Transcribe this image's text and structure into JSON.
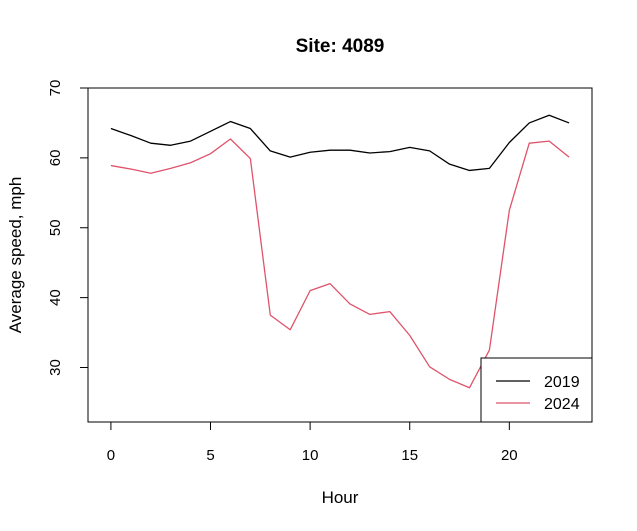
{
  "chart_data": {
    "type": "line",
    "title": "Site: 4089",
    "xlabel": "Hour",
    "ylabel": "Average speed, mph",
    "xlim": [
      -1.15,
      24.15
    ],
    "ylim": [
      22.2,
      70
    ],
    "x_ticks": [
      0,
      5,
      10,
      15,
      20
    ],
    "y_ticks": [
      30,
      40,
      50,
      60,
      70
    ],
    "grid": false,
    "legend_position": "bottom-right",
    "x": [
      0,
      1,
      2,
      3,
      4,
      5,
      6,
      7,
      8,
      9,
      10,
      11,
      12,
      13,
      14,
      15,
      16,
      17,
      18,
      19,
      20,
      21,
      22,
      23
    ],
    "series": [
      {
        "name": "2019",
        "color": "#000000",
        "values": [
          64.2,
          63.2,
          62.1,
          61.8,
          62.4,
          63.8,
          65.2,
          64.2,
          61.0,
          60.1,
          60.8,
          61.1,
          61.1,
          60.7,
          60.9,
          61.5,
          61.0,
          59.1,
          58.2,
          58.5,
          62.2,
          65.0,
          66.1,
          65.0
        ]
      },
      {
        "name": "2024",
        "color": "#DF536B",
        "values": [
          58.9,
          58.4,
          57.8,
          58.5,
          59.3,
          60.6,
          62.7,
          59.9,
          37.5,
          35.4,
          41.0,
          42.0,
          39.1,
          37.6,
          38.0,
          34.6,
          30.1,
          28.3,
          27.1,
          32.5,
          52.5,
          62.1,
          62.4,
          60.1
        ]
      }
    ]
  }
}
